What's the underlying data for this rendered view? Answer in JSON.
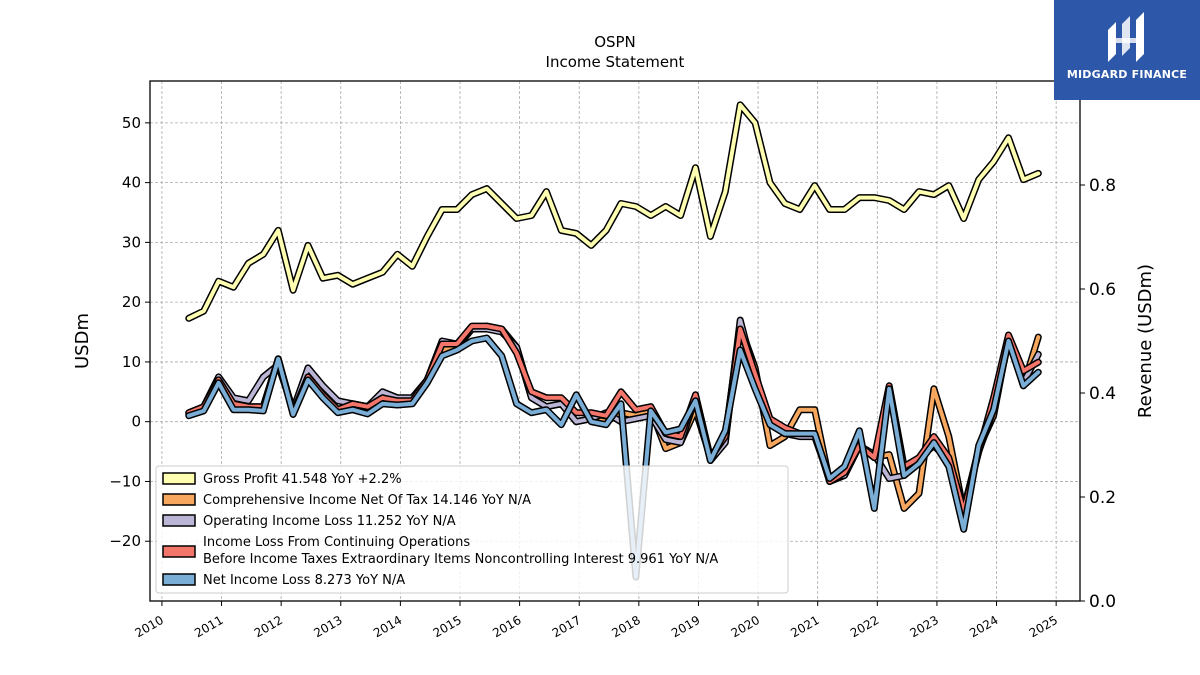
{
  "brand": {
    "name": "MIDGARD FINANCE",
    "bg_color": "#2d57a8"
  },
  "chart_data": {
    "type": "line",
    "title": "OSPN",
    "subtitle": "Income Statement",
    "ylabel": "USDm",
    "ylabel_right": "Revenue (USDm)",
    "xlabel": "",
    "ylim": [
      -30,
      57
    ],
    "ylim_right": [
      0.0,
      1.0
    ],
    "yticks": [
      -20,
      -10,
      0,
      10,
      20,
      30,
      40,
      50
    ],
    "yticks_right": [
      0.0,
      0.2,
      0.4,
      0.6,
      0.8
    ],
    "xlim": [
      2009.8,
      2025.4
    ],
    "xticks": [
      "2010",
      "2011",
      "2012",
      "2013",
      "2014",
      "2015",
      "2016",
      "2017",
      "2018",
      "2019",
      "2020",
      "2021",
      "2022",
      "2023",
      "2024",
      "2025"
    ],
    "grid": true,
    "legend_position": "bottom-left",
    "x": [
      2010.45,
      2010.7,
      2010.95,
      2011.2,
      2011.45,
      2011.7,
      2011.95,
      2012.2,
      2012.45,
      2012.7,
      2012.95,
      2013.2,
      2013.45,
      2013.7,
      2013.95,
      2014.2,
      2014.45,
      2014.7,
      2014.95,
      2015.2,
      2015.45,
      2015.7,
      2015.95,
      2016.2,
      2016.45,
      2016.7,
      2016.95,
      2017.2,
      2017.45,
      2017.7,
      2017.95,
      2018.2,
      2018.45,
      2018.7,
      2018.95,
      2019.2,
      2019.45,
      2019.7,
      2019.95,
      2020.2,
      2020.45,
      2020.7,
      2020.95,
      2021.2,
      2021.45,
      2021.7,
      2021.95,
      2022.2,
      2022.45,
      2022.7,
      2022.95,
      2023.2,
      2023.45,
      2023.7,
      2023.95,
      2024.2,
      2024.45,
      2024.7
    ],
    "series": [
      {
        "name": "Gross Profit",
        "legend": "Gross Profit  41.548 YoY +2.2%",
        "color": "#ffffb2",
        "values": [
          17.3,
          18.5,
          23.5,
          22.5,
          26.5,
          28,
          32,
          22,
          29.5,
          24,
          24.5,
          23,
          24,
          25,
          28,
          26,
          31,
          35.5,
          35.5,
          38,
          39,
          36.5,
          34,
          34.5,
          38.5,
          32,
          31.5,
          29.5,
          32,
          36.5,
          36,
          34.5,
          36,
          34.5,
          42.5,
          31,
          38.5,
          53,
          50,
          40,
          36.5,
          35.5,
          39.5,
          35.5,
          35.5,
          37.5,
          37.5,
          37,
          35.5,
          38.5,
          38,
          39.5,
          34,
          40.5,
          43.5,
          47.5,
          40.5,
          41.548
        ]
      },
      {
        "name": "Comprehensive Income Net Of Tax",
        "legend": "Comprehensive Income Net Of Tax  14.146 YoY N/A",
        "color": "#f7a85e",
        "values": [
          1.5,
          2.5,
          7,
          3,
          2.5,
          2.5,
          10.5,
          1.5,
          7.5,
          4.5,
          2,
          3,
          2.5,
          4,
          3.5,
          3.5,
          7,
          12,
          12.5,
          15.5,
          16,
          15.5,
          12.5,
          4,
          2.5,
          3,
          0,
          0.5,
          0,
          1.5,
          1,
          2,
          -4.5,
          -3.5,
          2,
          -6,
          -2.5,
          16,
          9,
          -4,
          -2.5,
          2,
          2,
          -10,
          -9,
          -4,
          -6,
          -5.5,
          -14.5,
          -12,
          5.5,
          -2.5,
          -15,
          -4.5,
          1,
          14,
          6,
          14.146
        ]
      },
      {
        "name": "Operating Income Loss",
        "legend": "Operating Income Loss  11.252 YoY N/A",
        "color": "#bcb6d6",
        "values": [
          1.2,
          2.5,
          7.5,
          4,
          3.5,
          7.5,
          9.5,
          2,
          9,
          6,
          3.5,
          3,
          2.5,
          5,
          4,
          4,
          7,
          13.5,
          13,
          15.5,
          15.5,
          15,
          12.5,
          4,
          2.5,
          3,
          0,
          0.5,
          1.5,
          0,
          0.5,
          1,
          -3,
          -3.5,
          4,
          -6.5,
          -3.5,
          17,
          7.5,
          0,
          -2,
          -2.5,
          -2.5,
          -9.5,
          -9,
          -4,
          -5.5,
          -9.5,
          -9,
          -6,
          -4,
          -6.5,
          -14.5,
          -5,
          2,
          13.5,
          6.5,
          11.252
        ]
      },
      {
        "name": "Income Loss From Continuing Operations Before Income Taxes Extraordinary Items Noncontrolling Interest",
        "legend_line1": "Income Loss From Continuing Operations",
        "legend_line2": "Before Income Taxes Extraordinary Items Noncontrolling Interest  9.961 YoY N/A",
        "color": "#f4766a",
        "values": [
          1.5,
          2.5,
          7,
          3,
          2.5,
          2.5,
          10.5,
          1.5,
          7.5,
          4.5,
          2,
          3,
          2.5,
          4,
          3.5,
          3.5,
          7,
          13,
          13,
          16,
          16,
          15.5,
          11.5,
          5,
          4,
          4,
          1.5,
          1.5,
          1,
          5,
          2,
          2.5,
          -2,
          -2.5,
          4.5,
          -6,
          -2.5,
          15.5,
          8,
          0.5,
          -1,
          -2,
          -2,
          -10,
          -8.5,
          -4,
          -6,
          6,
          -7.5,
          -6,
          -2.5,
          -6,
          -15,
          -5,
          4,
          14.5,
          8.5,
          9.961
        ]
      },
      {
        "name": "Net Income Loss",
        "legend": "Net Income Loss  8.273 YoY N/A",
        "color": "#7aaed6",
        "values": [
          1,
          1.8,
          6.5,
          2,
          2,
          1.8,
          10.5,
          1.2,
          7,
          4,
          1.5,
          2,
          1.3,
          3,
          2.8,
          3,
          6.5,
          11,
          12,
          13.5,
          14,
          11,
          3,
          1.5,
          2,
          -0.5,
          4.5,
          0,
          -0.5,
          3,
          -26,
          1.8,
          -1.8,
          -1.2,
          3.5,
          -6.5,
          -1.5,
          12,
          5.5,
          -0.5,
          -2,
          -2,
          -2,
          -9.5,
          -7.5,
          -1.5,
          -14.5,
          5.5,
          -9,
          -7,
          -3.5,
          -7.5,
          -18,
          -4,
          2,
          13.5,
          6,
          8.273
        ]
      }
    ]
  }
}
